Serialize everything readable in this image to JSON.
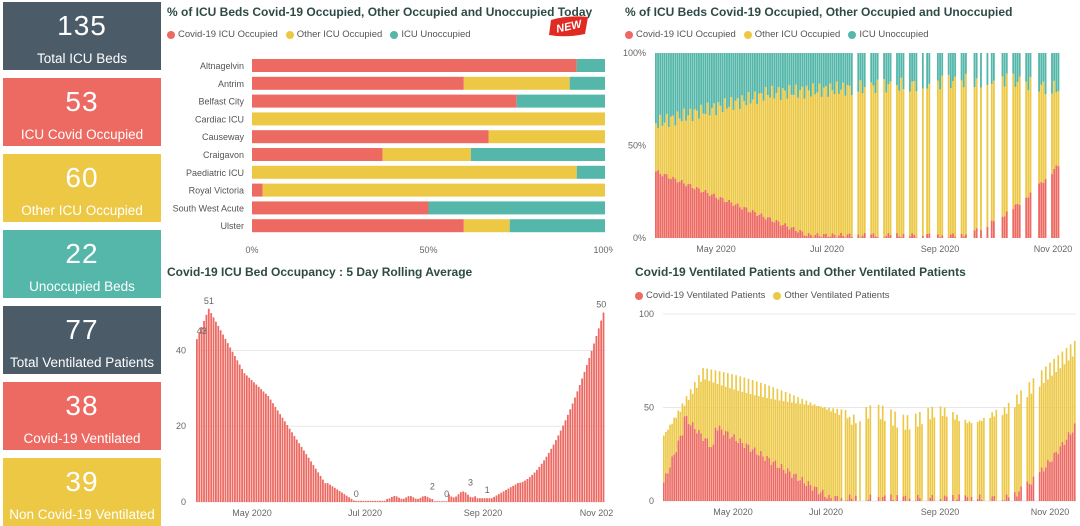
{
  "colors": {
    "covid": "#ed6a63",
    "other": "#ecc845",
    "unocc": "#54b7a9",
    "slate": "#4b5b68"
  },
  "cards": [
    {
      "value": "135",
      "label": "Total ICU Beds",
      "color": "slate"
    },
    {
      "value": "53",
      "label": "ICU Covid Occupied",
      "color": "coral"
    },
    {
      "value": "60",
      "label": "Other ICU Occupied",
      "color": "gold"
    },
    {
      "value": "22",
      "label": "Unoccupied Beds",
      "color": "teal"
    },
    {
      "value": "77",
      "label": "Total Ventilated Patients",
      "color": "slate"
    },
    {
      "value": "38",
      "label": "Covid-19 Ventilated",
      "color": "coral"
    },
    {
      "value": "39",
      "label": "Non Covid-19 Ventilated",
      "color": "gold"
    }
  ],
  "legends": {
    "occupancy": [
      "Covid-19 ICU Occupied",
      "Other ICU Occupied",
      "ICU Unoccupied"
    ],
    "ventilated": [
      "Covid-19 Ventilated Patients",
      "Other Ventilated Patients"
    ]
  },
  "badge": {
    "text": "NEW"
  },
  "chart_data": [
    {
      "type": "bar",
      "orientation": "horizontal-stacked-100",
      "title": "% of ICU Beds Covid-19 Occupied, Other Occupied and Unoccupied Today",
      "categories": [
        "Altnagelvin",
        "Antrim",
        "Belfast City",
        "Cardiac ICU",
        "Causeway",
        "Craigavon",
        "Paediatric ICU",
        "Royal Victoria",
        "South West Acute",
        "Ulster"
      ],
      "series": [
        {
          "name": "Covid-19 ICU Occupied",
          "values": [
            92,
            60,
            75,
            0,
            67,
            37,
            0,
            3,
            50,
            60
          ]
        },
        {
          "name": "Other ICU Occupied",
          "values": [
            0,
            30,
            0,
            100,
            33,
            25,
            92,
            97,
            0,
            13
          ]
        },
        {
          "name": "ICU Unoccupied",
          "values": [
            8,
            10,
            25,
            0,
            0,
            38,
            8,
            0,
            50,
            27
          ]
        }
      ],
      "xticks": [
        "0%",
        "50%",
        "100%"
      ]
    },
    {
      "type": "bar",
      "orientation": "vertical-stacked-100",
      "title": "% of ICU Beds Covid-19 Occupied, Other Occupied and Unoccupied",
      "yticks": [
        "0%",
        "50%",
        "100%"
      ],
      "xticks": [
        "May 2020",
        "Jul 2020",
        "Sep 2020",
        "Nov 2020"
      ]
    },
    {
      "type": "bar",
      "title": "Covid-19 ICU Bed Occupancy : 5 Day Rolling Average",
      "yticks": [
        "0",
        "20",
        "40"
      ],
      "ylim": [
        0,
        52
      ],
      "xticks": [
        "May 2020",
        "Jul 2020",
        "Sep 2020",
        "Nov 2020"
      ],
      "labels": [
        {
          "day": 2,
          "value": 43,
          "text": "43"
        },
        {
          "day": 5,
          "value": 51,
          "text": "51"
        },
        {
          "day": 67,
          "value": 0,
          "text": "0"
        },
        {
          "day": 99,
          "value": 2,
          "text": "2"
        },
        {
          "day": 105,
          "value": 0,
          "text": "0"
        },
        {
          "day": 115,
          "value": 3,
          "text": "3"
        },
        {
          "day": 122,
          "value": 1,
          "text": "1"
        },
        {
          "day": 170,
          "value": 50,
          "text": "50"
        }
      ]
    },
    {
      "type": "bar",
      "orientation": "vertical-stacked",
      "title": "Covid-19 Ventilated Patients and Other Ventilated Patients",
      "yticks": [
        "0",
        "50",
        "100"
      ],
      "ylim": [
        0,
        100
      ],
      "xticks": [
        "May 2020",
        "Jul 2020",
        "Sep 2020",
        "Nov 2020"
      ]
    }
  ]
}
